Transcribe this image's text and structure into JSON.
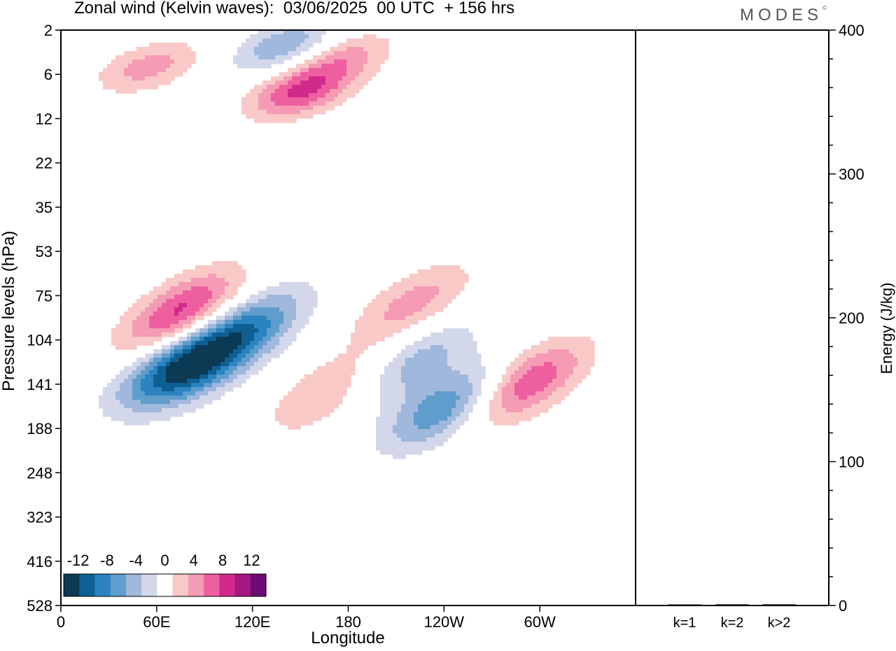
{
  "title": "Zonal wind (Kelvin waves):  03/06/2025  00 UTC  + 156 hrs",
  "brand": "MODES",
  "brand_mark": "©",
  "chart_data": [
    {
      "type": "heatmap",
      "title": "Zonal wind (Kelvin waves):  03/06/2025  00 UTC  + 156 hrs",
      "xlabel": "Longitude",
      "ylabel": "Pressure levels (hPa)",
      "x_ticks": [
        "0",
        "60E",
        "120E",
        "180",
        "120W",
        "60W"
      ],
      "x_range_deg": [
        0,
        360
      ],
      "y_ticks": [
        "2",
        "6",
        "12",
        "22",
        "35",
        "53",
        "75",
        "104",
        "141",
        "188",
        "248",
        "323",
        "416",
        "528"
      ],
      "y_scale": "model-level (top = 2 hPa, bottom = 528 hPa)",
      "colorbar": {
        "tick_labels": [
          "-12",
          "-8",
          "-4",
          "0",
          "4",
          "8",
          "12"
        ],
        "levels": [
          -14,
          -12,
          -10,
          -8,
          -6,
          -4,
          -2,
          2,
          4,
          6,
          8,
          10,
          12,
          14
        ],
        "colors": [
          "#0b3a55",
          "#0f5f93",
          "#2b83bf",
          "#5f9dcc",
          "#9fb8db",
          "#d3d7ea",
          "#ffffff",
          "#f9c9c7",
          "#f59bb4",
          "#ed5f9f",
          "#d22a8c",
          "#a51882",
          "#6c0c74"
        ]
      },
      "features": [
        {
          "sign": "negative",
          "center_lon": 78,
          "center_p": 125,
          "peak": -13
        },
        {
          "sign": "negative",
          "center_lon": 118,
          "center_p": 95,
          "peak": -7
        },
        {
          "sign": "negative",
          "center_lon": 240,
          "center_p": 165,
          "peak": -8
        },
        {
          "sign": "negative",
          "center_lon": 222,
          "center_p": 120,
          "peak": -5
        },
        {
          "sign": "positive",
          "center_lon": 75,
          "center_p": 85,
          "peak": 9
        },
        {
          "sign": "positive",
          "center_lon": 292,
          "center_p": 140,
          "peak": 8
        },
        {
          "sign": "positive",
          "center_lon": 165,
          "center_p": 150,
          "peak": 4
        },
        {
          "sign": "positive",
          "center_lon": 220,
          "center_p": 80,
          "peak": 5
        },
        {
          "sign": "positive",
          "center_lon": 150,
          "center_p": 8,
          "peak": 8
        },
        {
          "sign": "positive",
          "center_lon": 175,
          "center_p": 4,
          "peak": 5
        },
        {
          "sign": "negative",
          "center_lon": 140,
          "center_p": 3,
          "peak": -6
        },
        {
          "sign": "positive",
          "center_lon": 55,
          "center_p": 5,
          "peak": 5
        }
      ]
    },
    {
      "type": "bar",
      "ylabel": "Energy (J/kg)",
      "categories": [
        "k=1",
        "k=2",
        "k>2"
      ],
      "values": [
        0.5,
        0.8,
        0.8
      ],
      "ylim": [
        0,
        400
      ],
      "y_ticks": [
        "0",
        "100",
        "200",
        "300",
        "400"
      ]
    }
  ]
}
